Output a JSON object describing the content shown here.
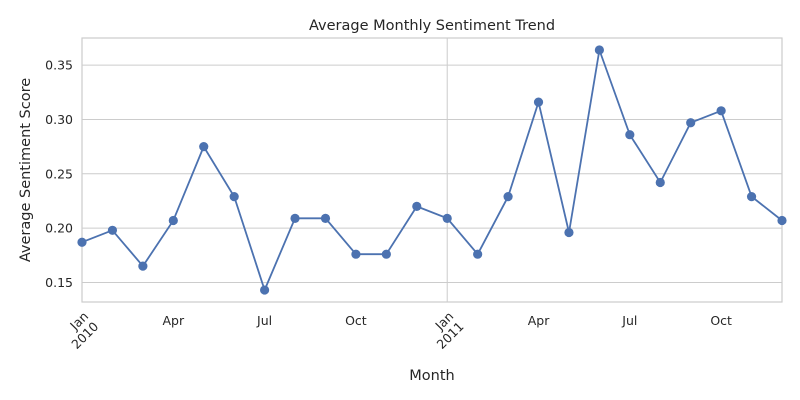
{
  "chart_data": {
    "type": "line",
    "title": "Average Monthly Sentiment Trend",
    "xlabel": "Month",
    "ylabel": "Average Sentiment Score",
    "grid": true,
    "legend": "none",
    "ylim": [
      0.132,
      0.375
    ],
    "yticks": [
      0.15,
      0.2,
      0.25,
      0.3,
      0.35
    ],
    "ytick_labels": [
      "0.15",
      "0.20",
      "0.25",
      "0.30",
      "0.35"
    ],
    "x": [
      "2010-01",
      "2010-02",
      "2010-03",
      "2010-04",
      "2010-05",
      "2010-06",
      "2010-07",
      "2010-08",
      "2010-09",
      "2010-10",
      "2010-11",
      "2010-12",
      "2011-01",
      "2011-02",
      "2011-03",
      "2011-04",
      "2011-05",
      "2011-06",
      "2011-07",
      "2011-08",
      "2011-09",
      "2011-10",
      "2011-11",
      "2011-12"
    ],
    "xticks": [
      {
        "month": "2010-01",
        "label": "Jan",
        "sublabel": "2010",
        "major": true
      },
      {
        "month": "2010-04",
        "label": "Apr",
        "sublabel": "",
        "major": false
      },
      {
        "month": "2010-07",
        "label": "Jul",
        "sublabel": "",
        "major": false
      },
      {
        "month": "2010-10",
        "label": "Oct",
        "sublabel": "",
        "major": false
      },
      {
        "month": "2011-01",
        "label": "Jan",
        "sublabel": "2011",
        "major": true
      },
      {
        "month": "2011-04",
        "label": "Apr",
        "sublabel": "",
        "major": false
      },
      {
        "month": "2011-07",
        "label": "Jul",
        "sublabel": "",
        "major": false
      },
      {
        "month": "2011-10",
        "label": "Oct",
        "sublabel": "",
        "major": false
      }
    ],
    "series": [
      {
        "color": "#4c72b0",
        "values": [
          0.187,
          0.198,
          0.165,
          0.207,
          0.275,
          0.229,
          0.143,
          0.209,
          0.209,
          0.176,
          0.176,
          0.22,
          0.209,
          0.176,
          0.229,
          0.316,
          0.196,
          0.364,
          0.286,
          0.242,
          0.297,
          0.308,
          0.229,
          0.207
        ]
      }
    ]
  }
}
